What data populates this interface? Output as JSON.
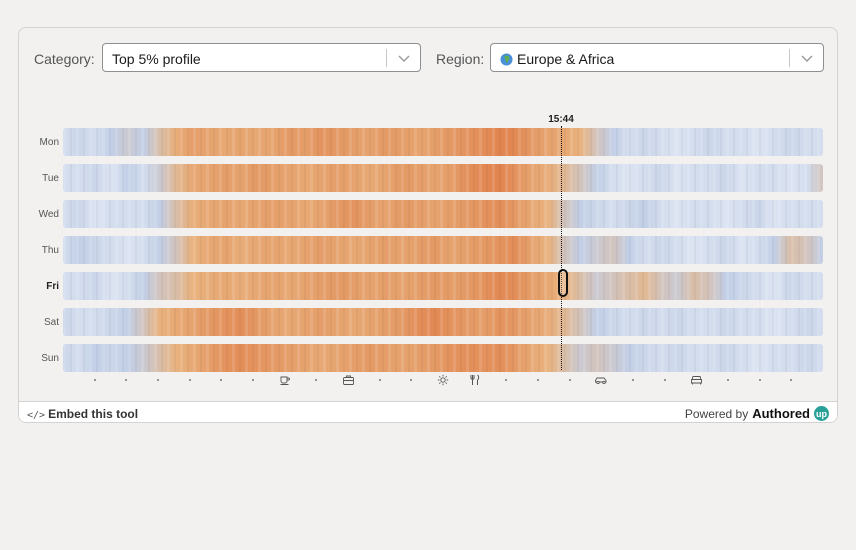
{
  "controls": {
    "category_label": "Category:",
    "category_value": "Top 5% profile",
    "region_label": "Region:",
    "region_value": "Europe & Africa",
    "region_icon": "globe-icon"
  },
  "heatmap": {
    "current_time": "15:44",
    "current_time_fraction": 0.655,
    "selected_day": "Fri",
    "days": [
      {
        "label": "Mon",
        "intensity": [
          0.1,
          0.15,
          0.1,
          0.2,
          0.25,
          0.2,
          0.35,
          0.5,
          0.65,
          0.6,
          0.55,
          0.6,
          0.55,
          0.6,
          0.7,
          0.65,
          0.75,
          0.7,
          0.65,
          0.6,
          0.7,
          0.65,
          0.6,
          0.65,
          0.7,
          0.75,
          0.8,
          0.9,
          0.85,
          0.7,
          0.6,
          0.55,
          0.45,
          0.3,
          0.2,
          0.1,
          0.15,
          0.1,
          0.05,
          0.1,
          0.15,
          0.1,
          0.1,
          0.05,
          0.1,
          0.15,
          0.1,
          0.1
        ]
      },
      {
        "label": "Tue",
        "intensity": [
          0.1,
          0.1,
          0.15,
          0.05,
          0.2,
          0.1,
          0.25,
          0.4,
          0.55,
          0.6,
          0.65,
          0.6,
          0.7,
          0.65,
          0.6,
          0.55,
          0.6,
          0.65,
          0.6,
          0.55,
          0.6,
          0.7,
          0.65,
          0.6,
          0.65,
          0.8,
          0.85,
          0.9,
          0.75,
          0.6,
          0.5,
          0.4,
          0.3,
          0.2,
          0.1,
          0.05,
          0.1,
          0.15,
          0.05,
          0.1,
          0.1,
          0.15,
          0.05,
          0.1,
          0.1,
          0.05,
          0.1,
          0.3
        ]
      },
      {
        "label": "Wed",
        "intensity": [
          0.1,
          0.15,
          0.05,
          0.1,
          0.1,
          0.1,
          0.2,
          0.35,
          0.5,
          0.55,
          0.6,
          0.55,
          0.6,
          0.65,
          0.6,
          0.55,
          0.6,
          0.7,
          0.75,
          0.65,
          0.6,
          0.7,
          0.65,
          0.6,
          0.65,
          0.7,
          0.75,
          0.8,
          0.7,
          0.55,
          0.45,
          0.3,
          0.2,
          0.15,
          0.1,
          0.15,
          0.2,
          0.1,
          0.05,
          0.1,
          0.1,
          0.05,
          0.1,
          0.15,
          0.05,
          0.1,
          0.1,
          0.1
        ]
      },
      {
        "label": "Thu",
        "intensity": [
          0.1,
          0.2,
          0.15,
          0.1,
          0.05,
          0.1,
          0.2,
          0.3,
          0.45,
          0.55,
          0.6,
          0.5,
          0.55,
          0.6,
          0.55,
          0.6,
          0.65,
          0.6,
          0.55,
          0.6,
          0.65,
          0.6,
          0.65,
          0.7,
          0.6,
          0.65,
          0.7,
          0.75,
          0.8,
          0.6,
          0.45,
          0.3,
          0.2,
          0.25,
          0.3,
          0.2,
          0.1,
          0.15,
          0.1,
          0.05,
          0.1,
          0.15,
          0.05,
          0.1,
          0.2,
          0.35,
          0.3,
          0.2
        ]
      },
      {
        "label": "Fri",
        "intensity": [
          0.1,
          0.1,
          0.15,
          0.05,
          0.1,
          0.2,
          0.3,
          0.35,
          0.45,
          0.5,
          0.55,
          0.5,
          0.55,
          0.6,
          0.55,
          0.6,
          0.65,
          0.7,
          0.65,
          0.6,
          0.65,
          0.6,
          0.65,
          0.7,
          0.65,
          0.7,
          0.75,
          0.85,
          0.8,
          0.65,
          0.55,
          0.45,
          0.35,
          0.25,
          0.3,
          0.35,
          0.4,
          0.3,
          0.25,
          0.35,
          0.3,
          0.2,
          0.15,
          0.1,
          0.05,
          0.15,
          0.1,
          0.1
        ]
      },
      {
        "label": "Sat",
        "intensity": [
          0.15,
          0.1,
          0.1,
          0.15,
          0.2,
          0.3,
          0.45,
          0.55,
          0.6,
          0.7,
          0.75,
          0.8,
          0.7,
          0.6,
          0.55,
          0.6,
          0.65,
          0.6,
          0.55,
          0.6,
          0.65,
          0.7,
          0.8,
          0.85,
          0.75,
          0.7,
          0.65,
          0.75,
          0.7,
          0.6,
          0.5,
          0.4,
          0.3,
          0.2,
          0.15,
          0.1,
          0.15,
          0.1,
          0.15,
          0.1,
          0.1,
          0.15,
          0.1,
          0.1,
          0.05,
          0.1,
          0.15,
          0.1
        ]
      },
      {
        "label": "Sun",
        "intensity": [
          0.15,
          0.1,
          0.2,
          0.15,
          0.2,
          0.25,
          0.35,
          0.45,
          0.55,
          0.65,
          0.75,
          0.8,
          0.75,
          0.7,
          0.65,
          0.6,
          0.55,
          0.6,
          0.65,
          0.7,
          0.65,
          0.6,
          0.65,
          0.7,
          0.75,
          0.8,
          0.75,
          0.8,
          0.7,
          0.55,
          0.45,
          0.35,
          0.25,
          0.3,
          0.25,
          0.2,
          0.15,
          0.1,
          0.15,
          0.1,
          0.1,
          0.15,
          0.1,
          0.05,
          0.1,
          0.1,
          0.15,
          0.1
        ]
      }
    ],
    "hour_ticks": [
      {
        "kind": "dot"
      },
      {
        "kind": "dot"
      },
      {
        "kind": "dot"
      },
      {
        "kind": "dot"
      },
      {
        "kind": "dot"
      },
      {
        "kind": "dot"
      },
      {
        "kind": "icon",
        "icon": "coffee-cup-icon"
      },
      {
        "kind": "dot"
      },
      {
        "kind": "icon",
        "icon": "briefcase-icon"
      },
      {
        "kind": "dot"
      },
      {
        "kind": "dot"
      },
      {
        "kind": "icon",
        "icon": "sun-icon"
      },
      {
        "kind": "icon",
        "icon": "fork-knife-icon"
      },
      {
        "kind": "dot"
      },
      {
        "kind": "dot"
      },
      {
        "kind": "dot"
      },
      {
        "kind": "icon",
        "icon": "car-icon"
      },
      {
        "kind": "dot"
      },
      {
        "kind": "dot"
      },
      {
        "kind": "icon",
        "icon": "sofa-icon"
      },
      {
        "kind": "dot"
      },
      {
        "kind": "dot"
      },
      {
        "kind": "dot"
      }
    ]
  },
  "footer": {
    "embed_code_glyph": "</>",
    "embed_label": "Embed this tool",
    "powered_by": "Powered by",
    "brand": "Authored",
    "brand_badge": "up"
  },
  "colors": {
    "cool": "#c2cfe6",
    "light": "#e4ebf6",
    "warm": "#e9b27e",
    "hot": "#df7a44"
  }
}
